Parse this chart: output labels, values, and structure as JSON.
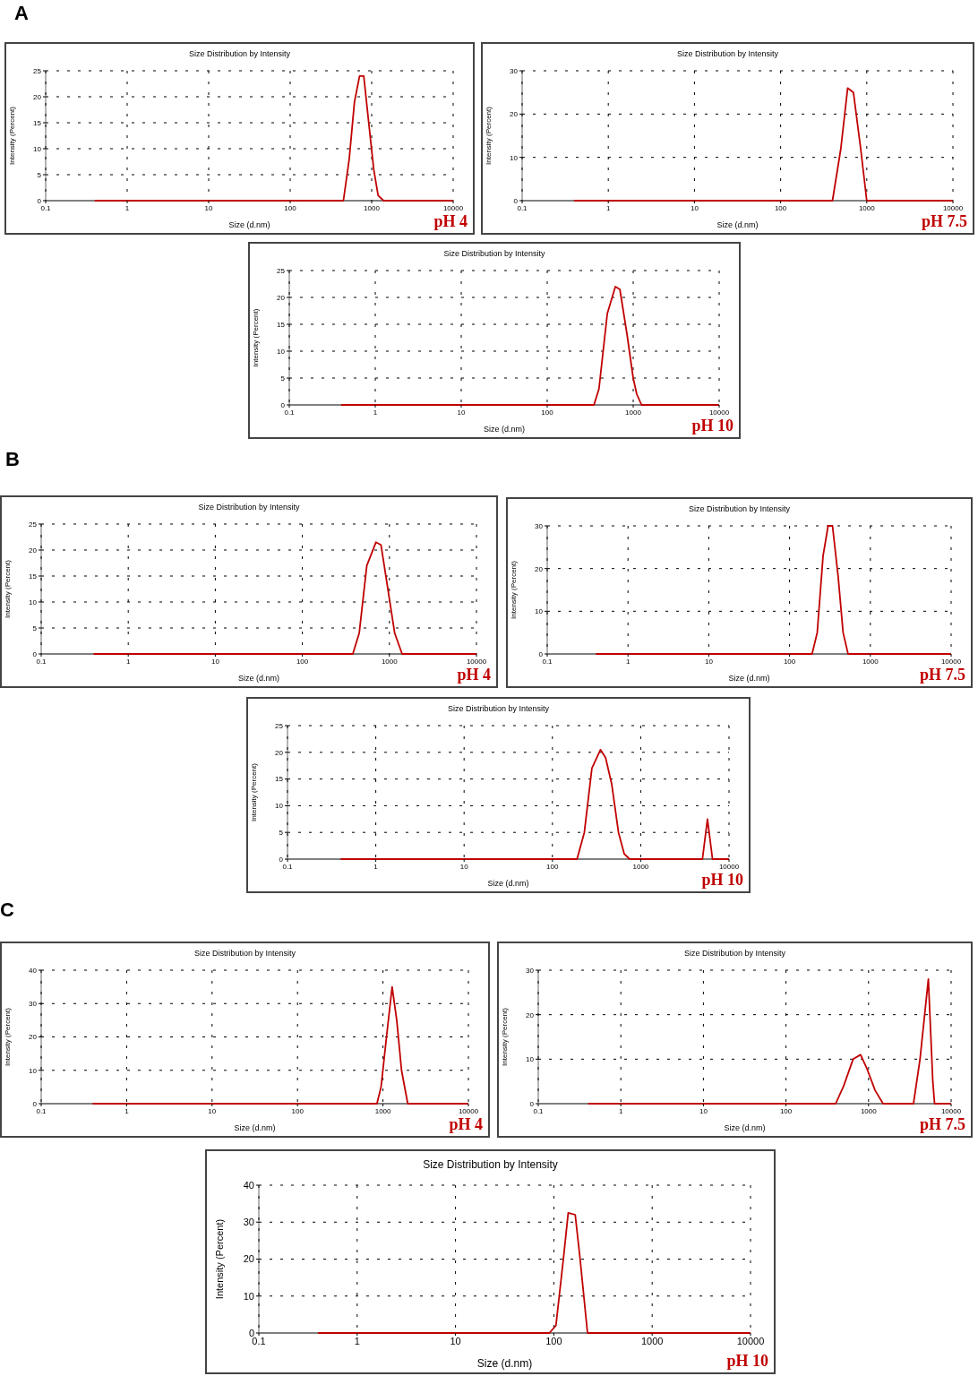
{
  "chart_data": [
    {
      "type": "line",
      "title": "Size Distribution by Intensity",
      "xlabel": "Size (d.nm)",
      "ylabel": "Intensity (Percent)",
      "annotations": [
        "A",
        "pH 4"
      ],
      "log": "x",
      "grid": true,
      "color": "#c00000",
      "x": [
        0.4,
        450,
        530,
        615,
        710,
        800,
        920,
        1060,
        1200,
        1400,
        10000
      ],
      "values": [
        0,
        0,
        8,
        19,
        24,
        24,
        15,
        6,
        1,
        0,
        0
      ],
      "xlim": [
        0.1,
        10000
      ],
      "xticks": [
        0.1,
        1,
        10,
        100,
        1000,
        10000
      ],
      "ylim": [
        0,
        25
      ],
      "yticks": [
        0,
        5,
        10,
        15,
        20,
        25
      ]
    },
    {
      "type": "line",
      "title": "Size Distribution by Intensity",
      "xlabel": "Size (d.nm)",
      "ylabel": "Intensity (Percent)",
      "annotations": [
        "pH 7.5"
      ],
      "log": "x",
      "grid": true,
      "color": "#c00000",
      "x": [
        0.4,
        400,
        500,
        600,
        700,
        850,
        1000,
        10000
      ],
      "values": [
        0,
        0,
        12,
        26,
        25,
        12,
        0,
        0
      ],
      "xlim": [
        0.1,
        10000
      ],
      "xticks": [
        0.1,
        1,
        10,
        100,
        1000,
        10000
      ],
      "ylim": [
        0,
        30
      ],
      "yticks": [
        0,
        10,
        20,
        30
      ]
    },
    {
      "type": "line",
      "title": "Size Distribution by Intensity",
      "xlabel": "Size (d.nm)",
      "ylabel": "Intensity (Percent)",
      "annotations": [
        "pH 10"
      ],
      "log": "x",
      "grid": true,
      "color": "#c00000",
      "x": [
        0.4,
        350,
        400,
        500,
        620,
        700,
        850,
        1000,
        1100,
        1250,
        10000
      ],
      "values": [
        0,
        0,
        3,
        17,
        22,
        21.5,
        13,
        5,
        2,
        0,
        0
      ],
      "xlim": [
        0.1,
        10000
      ],
      "xticks": [
        0.1,
        1,
        10,
        100,
        1000,
        10000
      ],
      "ylim": [
        0,
        25
      ],
      "yticks": [
        0,
        5,
        10,
        15,
        20,
        25
      ]
    },
    {
      "type": "line",
      "title": "Size Distribution by Intensity",
      "xlabel": "Size (d.nm)",
      "ylabel": "Intensity (Percent)",
      "annotations": [
        "B",
        "pH 4"
      ],
      "log": "x",
      "grid": true,
      "color": "#c00000",
      "x": [
        0.4,
        380,
        450,
        550,
        700,
        800,
        950,
        1150,
        1400,
        10000
      ],
      "values": [
        0,
        0,
        4,
        17,
        21.5,
        21,
        13,
        4,
        0,
        0
      ],
      "xlim": [
        0.1,
        10000
      ],
      "xticks": [
        0.1,
        1,
        10,
        100,
        1000,
        10000
      ],
      "ylim": [
        0,
        25
      ],
      "yticks": [
        0,
        5,
        10,
        15,
        20,
        25
      ]
    },
    {
      "type": "line",
      "title": "Size Distribution by Intensity",
      "xlabel": "Size (d.nm)",
      "ylabel": "Intensity (Percent)",
      "annotations": [
        "pH 7.5"
      ],
      "log": "x",
      "grid": true,
      "color": "#c00000",
      "x": [
        0.4,
        190,
        220,
        260,
        300,
        340,
        400,
        460,
        530,
        10000
      ],
      "values": [
        0,
        0,
        5,
        23,
        30,
        30,
        18,
        5,
        0,
        0
      ],
      "xlim": [
        0.1,
        10000
      ],
      "xticks": [
        0.1,
        1,
        10,
        100,
        1000,
        10000
      ],
      "ylim": [
        0,
        30
      ],
      "yticks": [
        0,
        10,
        20,
        30
      ]
    },
    {
      "type": "line",
      "title": "Size Distribution by Intensity",
      "xlabel": "Size (d.nm)",
      "ylabel": "Intensity (Percent)",
      "annotations": [
        "pH 10"
      ],
      "log": "x",
      "grid": true,
      "color": "#c00000",
      "x": [
        0.4,
        190,
        230,
        280,
        350,
        400,
        470,
        560,
        650,
        750,
        5000,
        5700,
        6500,
        10000
      ],
      "values": [
        0,
        0,
        5,
        17,
        20.5,
        19,
        14,
        5,
        1,
        0,
        0,
        7.5,
        0,
        0
      ],
      "xlim": [
        0.1,
        10000
      ],
      "xticks": [
        0.1,
        1,
        10,
        100,
        1000,
        10000
      ],
      "ylim": [
        0,
        25
      ],
      "yticks": [
        0,
        5,
        10,
        15,
        20,
        25
      ]
    },
    {
      "type": "line",
      "title": "Size Distribution by Intensity",
      "xlabel": "Size (d.nm)",
      "ylabel": "Intensity (Percent)",
      "annotations": [
        "C",
        "pH 4"
      ],
      "log": "x",
      "grid": true,
      "color": "#c00000",
      "x": [
        0.4,
        850,
        950,
        1100,
        1280,
        1450,
        1650,
        1950,
        10000
      ],
      "values": [
        0,
        0,
        5,
        20,
        35,
        25,
        10,
        0,
        0
      ],
      "xlim": [
        0.1,
        10000
      ],
      "xticks": [
        0.1,
        1,
        10,
        100,
        1000,
        10000
      ],
      "ylim": [
        0,
        40
      ],
      "yticks": [
        0,
        10,
        20,
        30,
        40
      ]
    },
    {
      "type": "line",
      "title": "Size Distribution by Intensity",
      "xlabel": "Size (d.nm)",
      "ylabel": "Intensity (Percent)",
      "annotations": [
        "pH 7.5"
      ],
      "log": "x",
      "grid": true,
      "color": "#c00000",
      "x": [
        0.4,
        400,
        500,
        650,
        800,
        950,
        1200,
        1500,
        3500,
        4200,
        5300,
        6000,
        6300,
        10000
      ],
      "values": [
        0,
        0,
        4,
        10,
        11,
        8,
        3,
        0,
        0,
        10,
        28,
        5,
        0,
        0
      ],
      "xlim": [
        0.1,
        10000
      ],
      "xticks": [
        0.1,
        1,
        10,
        100,
        1000,
        10000
      ],
      "ylim": [
        0,
        30
      ],
      "yticks": [
        0,
        10,
        20,
        30
      ]
    },
    {
      "type": "line",
      "title": "Size Distribution by Intensity",
      "xlabel": "Size (d.nm)",
      "ylabel": "Intensity (Percent)",
      "annotations": [
        "pH 10"
      ],
      "log": "x",
      "grid": true,
      "color": "#c00000",
      "x": [
        0.4,
        90,
        105,
        125,
        140,
        165,
        185,
        220,
        10000
      ],
      "values": [
        0,
        0,
        2,
        20,
        32.5,
        32,
        20,
        0,
        0
      ],
      "xlim": [
        0.1,
        10000
      ],
      "xticks": [
        0.1,
        1,
        10,
        100,
        1000,
        10000
      ],
      "ylim": [
        0,
        40
      ],
      "yticks": [
        0,
        10,
        20,
        30,
        40
      ]
    }
  ]
}
